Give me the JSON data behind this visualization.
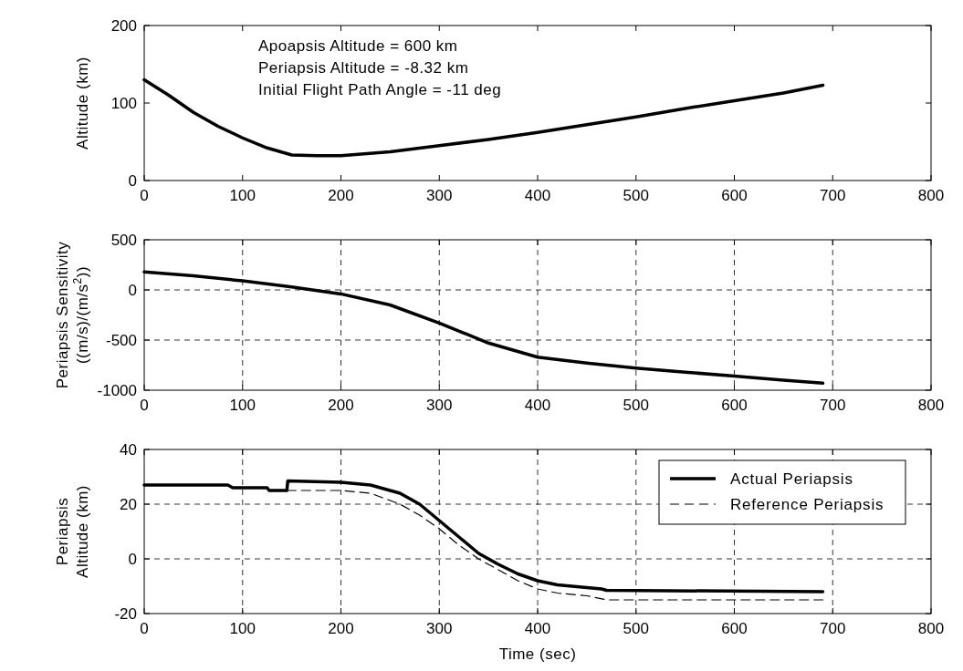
{
  "chart_data": [
    {
      "type": "line",
      "ylabel": "Altitude (km)",
      "xlim": [
        0,
        800
      ],
      "xticks": [
        0,
        100,
        200,
        300,
        400,
        500,
        600,
        700,
        800
      ],
      "ylim": [
        0,
        200
      ],
      "yticks": [
        0,
        100,
        200
      ],
      "grid": false,
      "annotations": [
        "Apoapsis Altitude = 600 km",
        "Periapsis Altitude = -8.32 km",
        "Initial Flight Path Angle = -11 deg"
      ],
      "series": [
        {
          "color": "#000000",
          "line_style": "solid",
          "x": [
            0,
            25,
            50,
            75,
            100,
            125,
            150,
            175,
            200,
            250,
            300,
            350,
            400,
            450,
            500,
            550,
            600,
            650,
            690
          ],
          "values": [
            130,
            110,
            88,
            70,
            55,
            42,
            33,
            32,
            32,
            37,
            45,
            53,
            62,
            72,
            82,
            93,
            103,
            113,
            123
          ]
        }
      ]
    },
    {
      "type": "line",
      "ylabel": "Periapsis Sensitivity\n((m/s)/(m/s$^{2}$))",
      "xlim": [
        0,
        800
      ],
      "xticks": [
        0,
        100,
        200,
        300,
        400,
        500,
        600,
        700,
        800
      ],
      "ylim": [
        -1000,
        500
      ],
      "yticks": [
        -1000,
        -500,
        0,
        500
      ],
      "grid": true,
      "series": [
        {
          "color": "#000000",
          "line_style": "solid",
          "x": [
            0,
            50,
            100,
            150,
            200,
            250,
            300,
            350,
            400,
            450,
            500,
            550,
            600,
            650,
            690
          ],
          "values": [
            180,
            140,
            90,
            30,
            -40,
            -150,
            -330,
            -530,
            -670,
            -730,
            -780,
            -820,
            -860,
            -900,
            -930
          ]
        }
      ]
    },
    {
      "type": "line",
      "ylabel": "Periapsis\nAltitude (km)",
      "xlabel": "Time (sec)",
      "xlim": [
        0,
        800
      ],
      "xticks": [
        0,
        100,
        200,
        300,
        400,
        500,
        600,
        700,
        800
      ],
      "ylim": [
        -20,
        40
      ],
      "yticks": [
        -20,
        0,
        20,
        40
      ],
      "grid": true,
      "legend": "top right",
      "series": [
        {
          "name": "Actual Periapsis",
          "color": "#000000",
          "line_style": "solid",
          "x": [
            0,
            85,
            90,
            125,
            127,
            145,
            146,
            200,
            230,
            260,
            280,
            300,
            320,
            340,
            360,
            380,
            400,
            420,
            450,
            465,
            470,
            690
          ],
          "values": [
            27,
            27,
            26,
            26,
            25,
            25,
            28.5,
            28,
            27,
            24,
            20,
            14,
            8,
            2,
            -2,
            -5.5,
            -8,
            -9.5,
            -10.5,
            -11,
            -11.5,
            -12
          ]
        },
        {
          "name": "Reference Periapsis",
          "color": "#000000",
          "line_style": "dashed",
          "x": [
            145,
            200,
            230,
            260,
            280,
            300,
            320,
            340,
            360,
            380,
            400,
            420,
            450,
            470,
            690
          ],
          "values": [
            25,
            25,
            24,
            20,
            16,
            11,
            5,
            0,
            -4,
            -8,
            -11,
            -12.5,
            -13.5,
            -15,
            -15
          ]
        }
      ]
    }
  ]
}
